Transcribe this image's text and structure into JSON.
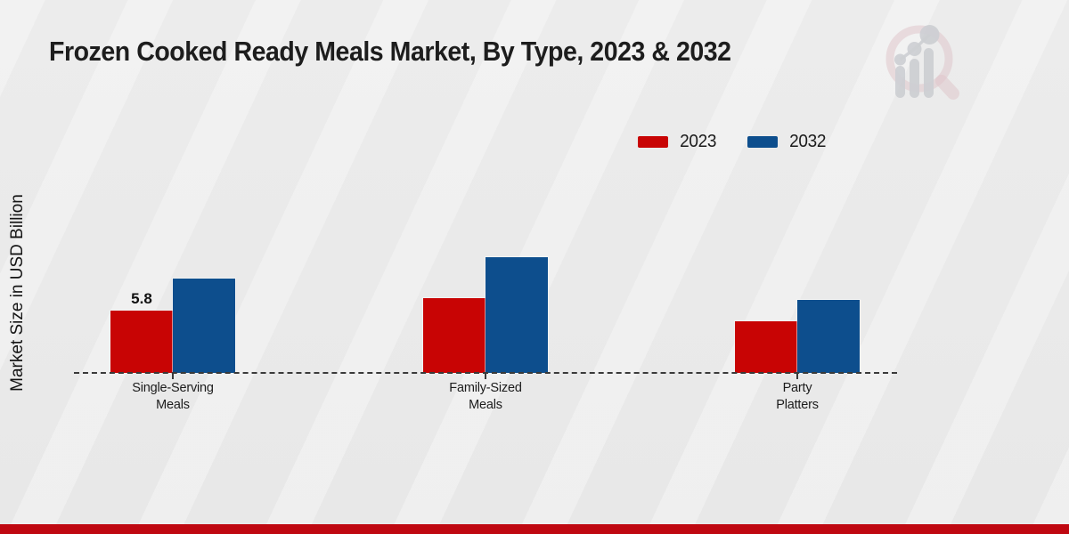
{
  "page": {
    "title": "Frozen Cooked Ready Meals Market, By Type, 2023 & 2032",
    "ylabel": "Market Size in USD Billion",
    "footer_band_color": "#bf0811"
  },
  "legend": {
    "position": "top-right",
    "items": [
      {
        "label": "2023",
        "color": "#c80404"
      },
      {
        "label": "2032",
        "color": "#0d4e8d"
      }
    ]
  },
  "watermark": {
    "name": "market-research-magnifier-logo",
    "ring_color": "#ddc0c5",
    "bars_color": "#c7c9ce"
  },
  "chart_data": {
    "type": "bar",
    "title": "Frozen Cooked Ready Meals Market, By Type, 2023 & 2032",
    "xlabel": "",
    "ylabel": "Market Size in USD Billion",
    "categories": [
      "Single-Serving Meals",
      "Family-Sized Meals",
      "Party Platters"
    ],
    "categories_display": [
      "Single-Serving\nMeals",
      "Family-Sized\nMeals",
      "Party\nPlatters"
    ],
    "series": [
      {
        "name": "2023",
        "color": "#c80404",
        "values": [
          5.8,
          7.0,
          4.8
        ]
      },
      {
        "name": "2032",
        "color": "#0d4e8d",
        "values": [
          8.8,
          10.8,
          6.8
        ]
      }
    ],
    "annotations": [
      {
        "text": "5.8",
        "category_index": 0,
        "series_index": 0
      }
    ],
    "axis": {
      "ylim": [
        0,
        12
      ],
      "grid": false,
      "y_ticks_visible": false,
      "baseline_style": "dashed",
      "x_ticks_visible": true
    },
    "legend_position": "top-right"
  }
}
